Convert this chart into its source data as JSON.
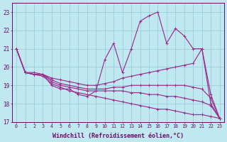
{
  "xlabel": "Windchill (Refroidissement éolien,°C)",
  "x": [
    0,
    1,
    2,
    3,
    4,
    5,
    6,
    7,
    8,
    9,
    10,
    11,
    12,
    13,
    14,
    15,
    16,
    17,
    18,
    19,
    20,
    21,
    22,
    23
  ],
  "line_zigzag": [
    21.0,
    19.7,
    19.7,
    19.6,
    19.0,
    18.8,
    18.8,
    18.5,
    18.4,
    18.7,
    20.4,
    21.3,
    19.7,
    21.0,
    22.5,
    22.8,
    23.0,
    21.3,
    22.1,
    21.7,
    21.0,
    21.0,
    18.0,
    17.2
  ],
  "line_fan1": [
    21.0,
    19.7,
    19.6,
    19.6,
    19.4,
    19.3,
    19.2,
    19.1,
    19.0,
    19.0,
    19.1,
    19.2,
    19.4,
    19.5,
    19.6,
    19.7,
    19.8,
    19.9,
    20.0,
    20.1,
    20.2,
    21.0,
    18.5,
    17.2
  ],
  "line_fan2": [
    21.0,
    19.7,
    19.6,
    19.6,
    19.3,
    19.1,
    19.0,
    18.9,
    18.8,
    18.8,
    18.8,
    18.9,
    18.9,
    19.0,
    19.0,
    19.0,
    19.0,
    19.0,
    19.0,
    19.0,
    18.9,
    18.8,
    18.3,
    17.2
  ],
  "line_fan3": [
    21.0,
    19.7,
    19.6,
    19.6,
    19.2,
    19.0,
    18.9,
    18.8,
    18.7,
    18.7,
    18.7,
    18.7,
    18.7,
    18.6,
    18.6,
    18.5,
    18.5,
    18.4,
    18.4,
    18.3,
    18.2,
    18.1,
    17.9,
    17.2
  ],
  "line_fan4": [
    21.0,
    19.7,
    19.6,
    19.5,
    19.1,
    18.9,
    18.7,
    18.6,
    18.5,
    18.4,
    18.3,
    18.2,
    18.1,
    18.0,
    17.9,
    17.8,
    17.7,
    17.7,
    17.6,
    17.5,
    17.4,
    17.4,
    17.3,
    17.2
  ],
  "ylim": [
    17,
    23.5
  ],
  "yticks": [
    17,
    18,
    19,
    20,
    21,
    22,
    23
  ],
  "xlim": [
    -0.5,
    23.5
  ],
  "line_color": "#9b2d8e",
  "bg_color": "#c0e8f0",
  "grid_color": "#96c8d8",
  "axis_color": "#6a0a6a",
  "tick_color": "#6a0a6a",
  "label_color": "#6a0a6a"
}
